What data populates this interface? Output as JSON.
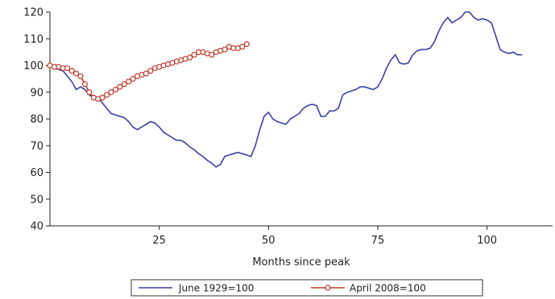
{
  "chart_data": {
    "type": "line",
    "title": "",
    "xlabel": "Months since peak",
    "ylabel": "",
    "xlim": [
      0,
      115
    ],
    "ylim": [
      40,
      120
    ],
    "x_ticks": [
      25,
      50,
      75,
      100
    ],
    "y_ticks": [
      40,
      50,
      60,
      70,
      80,
      90,
      100,
      110,
      120
    ],
    "grid": false,
    "legend_position": "bottom",
    "series": [
      {
        "name": "June 1929=100",
        "color": "#3a3fa8",
        "marker": "none",
        "x": [
          0,
          1,
          2,
          3,
          4,
          5,
          6,
          7,
          8,
          9,
          10,
          11,
          12,
          13,
          14,
          15,
          16,
          17,
          18,
          19,
          20,
          21,
          22,
          23,
          24,
          25,
          26,
          27,
          28,
          29,
          30,
          31,
          32,
          33,
          34,
          35,
          36,
          37,
          38,
          39,
          40,
          41,
          42,
          43,
          44,
          45,
          46,
          47,
          48,
          49,
          50,
          51,
          52,
          53,
          54,
          55,
          56,
          57,
          58,
          59,
          60,
          61,
          62,
          63,
          64,
          65,
          66,
          67,
          68,
          69,
          70,
          71,
          72,
          73,
          74,
          75,
          76,
          77,
          78,
          79,
          80,
          81,
          82,
          83,
          84,
          85,
          86,
          87,
          88,
          89,
          90,
          91,
          92,
          93,
          94,
          95,
          96,
          97,
          98,
          99,
          100,
          101,
          102,
          103,
          104,
          105,
          106,
          107,
          108
        ],
        "values": [
          100,
          99,
          98.5,
          98,
          96,
          94,
          91,
          92,
          91,
          89,
          88,
          88,
          86,
          84,
          82,
          81.5,
          81,
          80.5,
          79,
          77,
          76,
          77,
          78,
          79,
          78.5,
          77,
          75,
          74,
          73,
          72,
          72,
          71,
          69.5,
          68.5,
          67,
          66,
          64.5,
          63.5,
          62,
          63,
          66,
          66.5,
          67,
          67.5,
          67,
          66.5,
          66,
          70,
          76,
          81,
          82.5,
          80,
          79,
          78.5,
          78,
          80,
          81,
          82,
          84,
          85,
          85.5,
          85,
          81,
          81,
          83,
          83,
          84,
          89,
          90,
          90.5,
          91,
          92,
          92,
          91.5,
          91,
          92,
          95,
          99,
          102,
          104,
          101,
          100.5,
          101,
          104,
          105.5,
          106,
          106,
          106.5,
          109,
          113,
          116,
          118,
          116,
          117,
          118,
          120,
          120,
          118,
          117,
          117.5,
          117,
          116,
          111,
          106,
          105,
          104.5,
          105,
          104,
          104
        ]
      },
      {
        "name": "April 2008=100",
        "color": "#c0392b",
        "marker": "circle",
        "x": [
          0,
          1,
          2,
          3,
          4,
          5,
          6,
          7,
          8,
          9,
          10,
          11,
          12,
          13,
          14,
          15,
          16,
          17,
          18,
          19,
          20,
          21,
          22,
          23,
          24,
          25,
          26,
          27,
          28,
          29,
          30,
          31,
          32,
          33,
          34,
          35,
          36,
          37,
          38,
          39,
          40,
          41,
          42,
          43,
          44,
          45
        ],
        "values": [
          100,
          99.5,
          99.5,
          99,
          99,
          98,
          97,
          96,
          93,
          90,
          88,
          87.5,
          88,
          89,
          90,
          91,
          92,
          93,
          94,
          95,
          96,
          96.5,
          97,
          98,
          99,
          99.5,
          100,
          100.5,
          101,
          101.5,
          102,
          102.5,
          103,
          104,
          105,
          105,
          104.5,
          104,
          105,
          105.5,
          106,
          107,
          106.5,
          106.5,
          107,
          108
        ]
      }
    ]
  }
}
